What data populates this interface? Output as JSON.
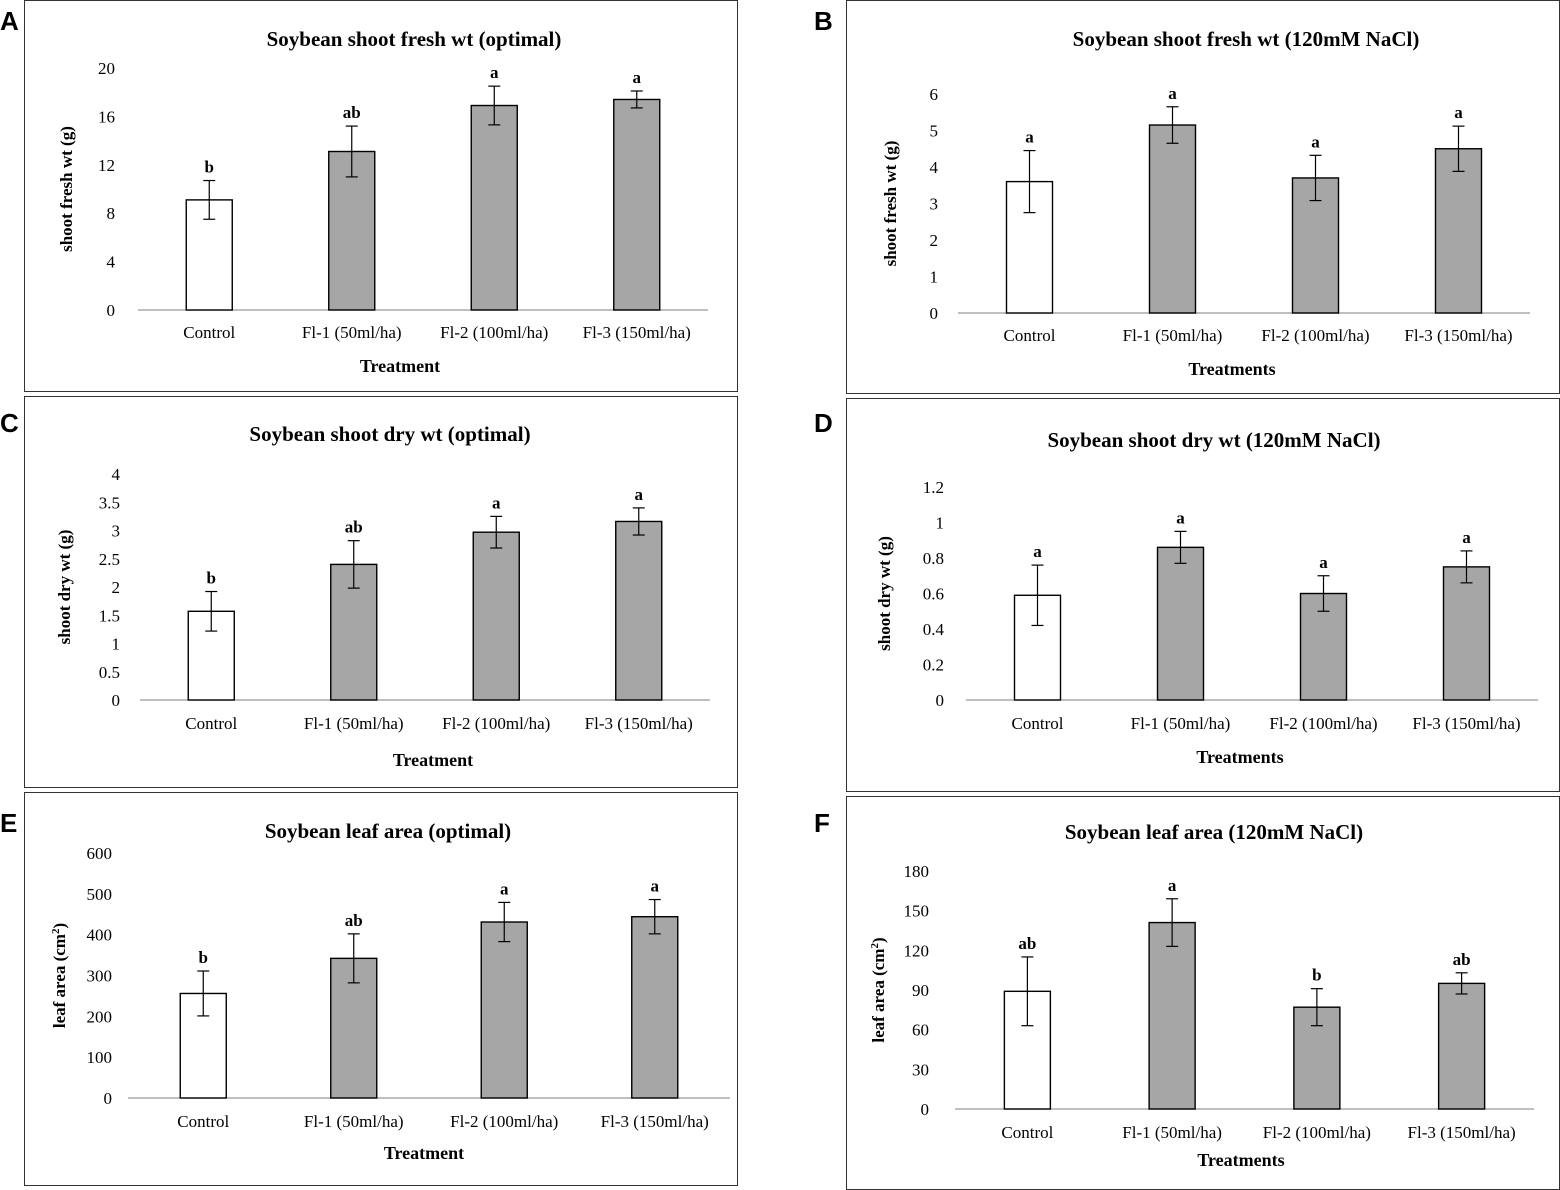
{
  "chart_data": [
    {
      "id": "A",
      "letter": "A",
      "type": "bar",
      "title": "Soybean shoot fresh wt (optimal)",
      "ylabel": "shoot fresh wt (g)",
      "xlabel": "Treatment",
      "ylim": [
        0,
        20
      ],
      "yticks": [
        "0",
        "4",
        "8",
        "12",
        "16",
        "20"
      ],
      "categories": [
        "Control",
        "Fl-1 (50ml/ha)",
        "Fl-2 (100ml/ha)",
        "Fl-3 (150ml/ha)"
      ],
      "values": [
        9.1,
        13.1,
        16.9,
        17.4
      ],
      "errors": [
        1.6,
        2.1,
        1.6,
        0.7
      ],
      "letters": [
        "b",
        "ab",
        "a",
        "a"
      ],
      "fills": [
        "#ffffff",
        "#a6a6a6",
        "#a6a6a6",
        "#a6a6a6"
      ]
    },
    {
      "id": "B",
      "letter": "B",
      "type": "bar",
      "title": "Soybean shoot fresh wt (120mM NaCl)",
      "ylabel": "shoot fresh wt (g)",
      "xlabel": "Treatments",
      "ylim": [
        0,
        6
      ],
      "yticks": [
        "0",
        "1",
        "2",
        "3",
        "4",
        "5",
        "6"
      ],
      "categories": [
        "Control",
        "Fl-1 (50ml/ha)",
        "Fl-2 (100ml/ha)",
        "Fl-3 (150ml/ha)"
      ],
      "values": [
        3.6,
        5.15,
        3.7,
        4.5
      ],
      "errors": [
        0.85,
        0.5,
        0.62,
        0.62
      ],
      "letters": [
        "a",
        "a",
        "a",
        "a"
      ],
      "fills": [
        "#ffffff",
        "#a6a6a6",
        "#a6a6a6",
        "#a6a6a6"
      ]
    },
    {
      "id": "C",
      "letter": "C",
      "type": "bar",
      "title": "Soybean shoot dry  wt (optimal)",
      "ylabel": "shoot dry  wt (g)",
      "xlabel": "Treatment",
      "ylim": [
        0,
        4
      ],
      "yticks": [
        "0",
        "0.5",
        "1",
        "1.5",
        "2",
        "2.5",
        "3",
        "3.5",
        "4"
      ],
      "categories": [
        "Control",
        "Fl-1 (50ml/ha)",
        "Fl-2 (100ml/ha)",
        "Fl-3 (150ml/ha)"
      ],
      "values": [
        1.57,
        2.4,
        2.97,
        3.16
      ],
      "errors": [
        0.35,
        0.42,
        0.28,
        0.24
      ],
      "letters": [
        "b",
        "ab",
        "a",
        "a"
      ],
      "fills": [
        "#ffffff",
        "#a6a6a6",
        "#a6a6a6",
        "#a6a6a6"
      ]
    },
    {
      "id": "D",
      "letter": "D",
      "type": "bar",
      "title": "Soybean shoot dry  wt (120mM NaCl)",
      "ylabel": "shoot dry   wt (g)",
      "xlabel": "Treatments",
      "ylim": [
        0,
        1.2
      ],
      "yticks": [
        "0",
        "0.2",
        "0.4",
        "0.6",
        "0.8",
        "1",
        "1.2"
      ],
      "categories": [
        "Control",
        "Fl-1 (50ml/ha)",
        "Fl-2 (100ml/ha)",
        "Fl-3 (150ml/ha)"
      ],
      "values": [
        0.59,
        0.86,
        0.6,
        0.75
      ],
      "errors": [
        0.17,
        0.09,
        0.1,
        0.09
      ],
      "letters": [
        "a",
        "a",
        "a",
        "a"
      ],
      "fills": [
        "#ffffff",
        "#a6a6a6",
        "#a6a6a6",
        "#a6a6a6"
      ]
    },
    {
      "id": "E",
      "letter": "E",
      "type": "bar",
      "title": "Soybean leaf area (optimal)",
      "ylabel": "leaf area (cm",
      "ylabel_sup": "2",
      "ylabel_end": ")",
      "xlabel": "Treatment",
      "ylim": [
        0,
        600
      ],
      "yticks": [
        "0",
        "100",
        "200",
        "300",
        "400",
        "500",
        "600"
      ],
      "categories": [
        "Control",
        "Fl-1 (50ml/ha)",
        "Fl-2 (100ml/ha)",
        "Fl-3 (150ml/ha)"
      ],
      "values": [
        256,
        342,
        431,
        444
      ],
      "errors": [
        55,
        60,
        48,
        42
      ],
      "letters": [
        "b",
        "ab",
        "a",
        "a"
      ],
      "fills": [
        "#ffffff",
        "#a6a6a6",
        "#a6a6a6",
        "#a6a6a6"
      ]
    },
    {
      "id": "F",
      "letter": "F",
      "type": "bar",
      "title": "Soybean leaf area (120mM NaCl)",
      "ylabel": "leaf area (cm",
      "ylabel_sup": "2",
      "ylabel_end": ")",
      "xlabel": "Treatments",
      "ylim": [
        0,
        180
      ],
      "yticks": [
        "0",
        "30",
        "60",
        "90",
        "120",
        "150",
        "180"
      ],
      "categories": [
        "Control",
        "Fl-1 (50ml/ha)",
        "Fl-2 (100ml/ha)",
        "Fl-3 (150ml/ha)"
      ],
      "values": [
        89,
        141,
        77,
        95
      ],
      "errors": [
        26,
        18,
        14,
        8
      ],
      "letters": [
        "ab",
        "a",
        "b",
        "ab"
      ],
      "fills": [
        "#ffffff",
        "#a6a6a6",
        "#a6a6a6",
        "#a6a6a6"
      ]
    }
  ]
}
